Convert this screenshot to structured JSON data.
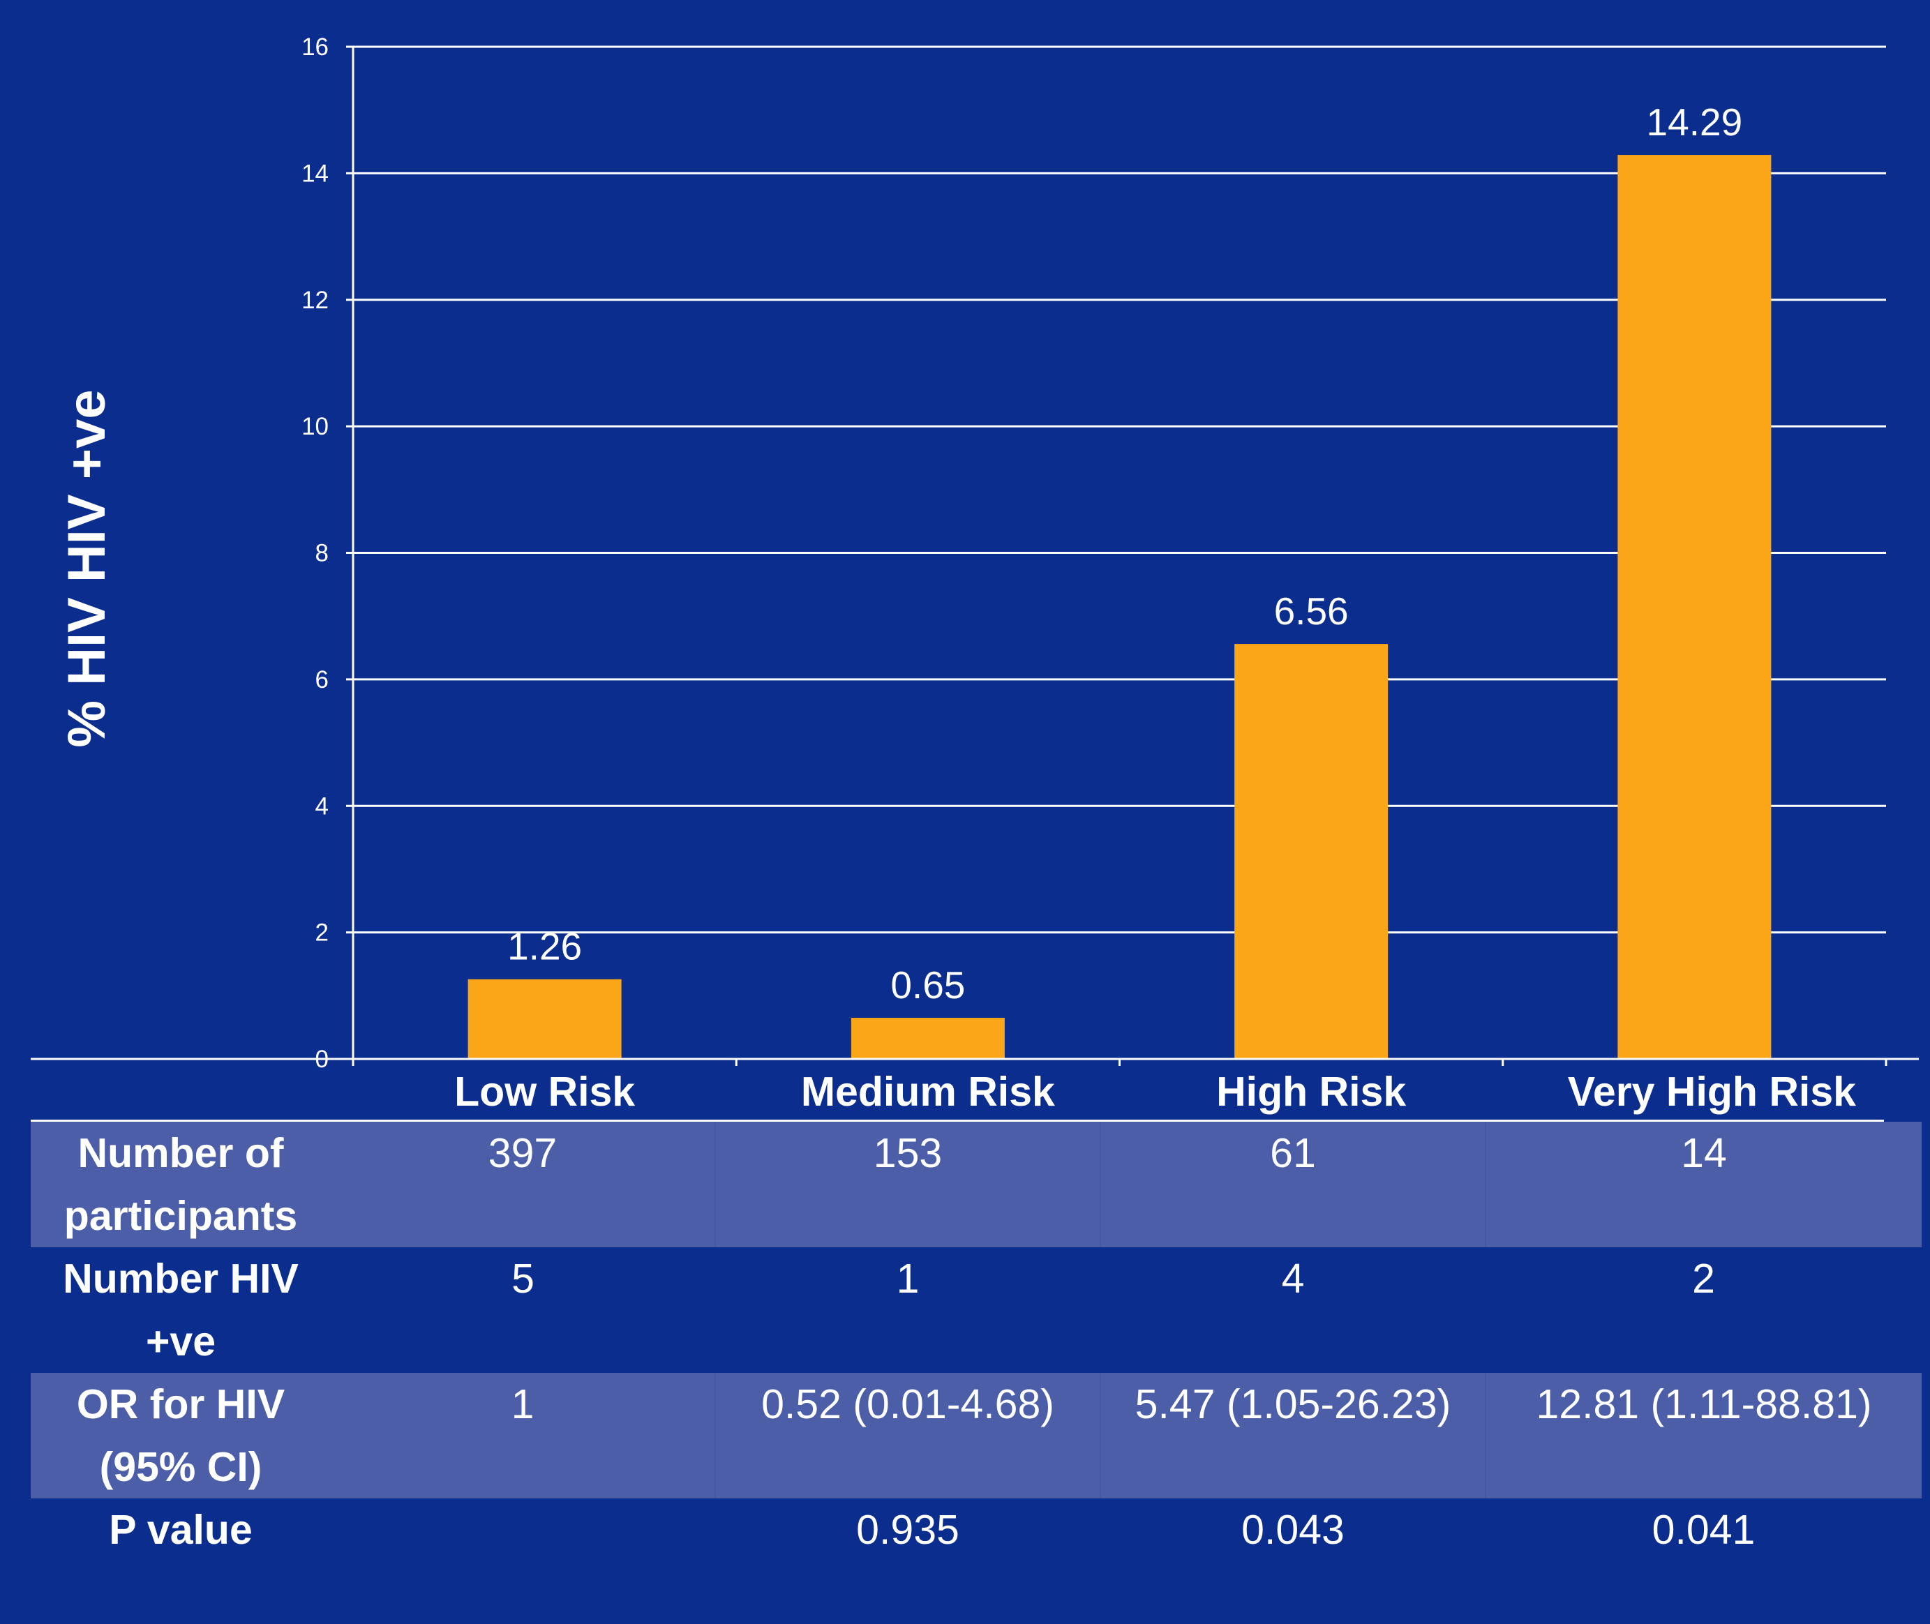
{
  "chart_data": {
    "type": "bar",
    "categories": [
      "Low Risk",
      "Medium Risk",
      "High Risk",
      "Very High Risk"
    ],
    "values": [
      1.26,
      0.65,
      6.56,
      14.29
    ],
    "data_labels": [
      "1.26",
      "0.65",
      "6.56",
      "14.29"
    ],
    "ylabel": "% HIV  HIV +ve",
    "xlabel": "",
    "ylim": [
      0,
      16
    ],
    "yticks": [
      0,
      2,
      4,
      6,
      8,
      10,
      12,
      14,
      16
    ],
    "grid": true,
    "bar_color": "#fba617",
    "background_color": "#0b2d8e",
    "gridline_color": "#ffffff"
  },
  "table": {
    "rows": [
      {
        "header": "Number of participants",
        "cells": [
          "397",
          "153",
          "61",
          "14"
        ]
      },
      {
        "header": "Number HIV +ve",
        "cells": [
          "5",
          "1",
          "4",
          "2"
        ]
      },
      {
        "header": "OR for HIV (95% CI)",
        "cells": [
          "1",
          "0.52 (0.01-4.68)",
          "5.47 (1.05-26.23)",
          "12.81 (1.11-88.81)"
        ]
      },
      {
        "header": "P value",
        "cells": [
          "",
          "0.935",
          "0.043",
          "0.041"
        ]
      }
    ],
    "band_color": "#4c5ea8"
  }
}
